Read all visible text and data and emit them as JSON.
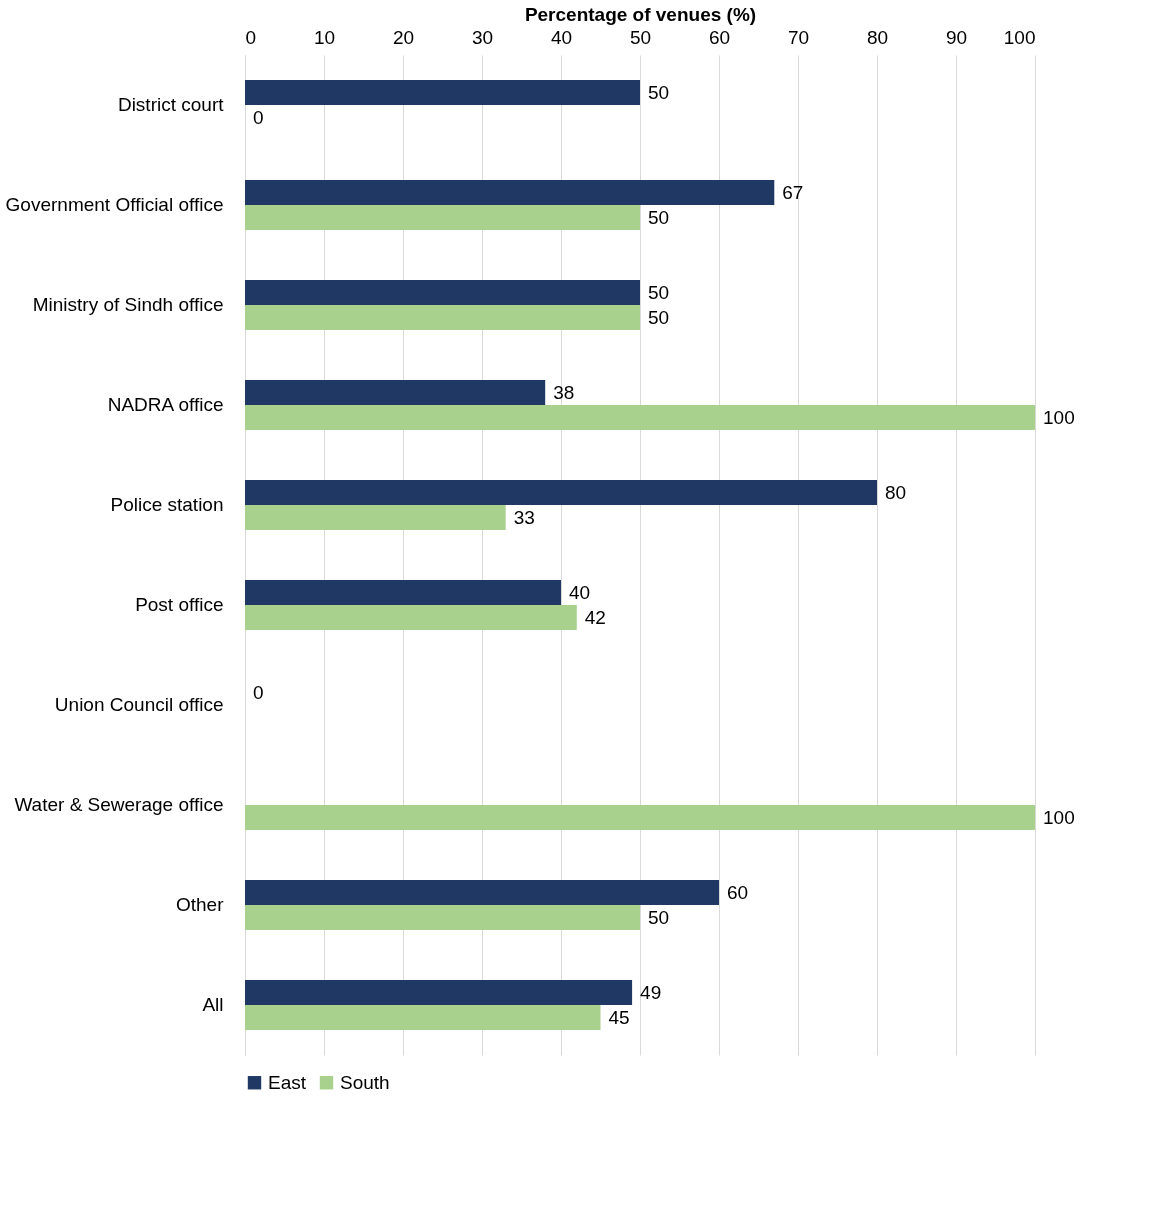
{
  "chart_data": {
    "type": "bar",
    "orientation": "horizontal",
    "xlabel": "Percentage of venues (%)",
    "categories": [
      "District court",
      "Government Official office",
      "Ministry of Sindh office",
      "NADRA office",
      "Police station",
      "Post office",
      "Union Council office",
      "Water & Sewerage office",
      "Other",
      "All"
    ],
    "series": [
      {
        "name": "East",
        "color": "#1f3864",
        "values": [
          50,
          67,
          50,
          38,
          80,
          40,
          0,
          null,
          60,
          49
        ]
      },
      {
        "name": "South",
        "color": "#a9d18e",
        "values": [
          0,
          50,
          50,
          100,
          33,
          42,
          null,
          100,
          50,
          45
        ]
      }
    ],
    "xlim": [
      0,
      100
    ],
    "xticks": [
      0,
      10,
      20,
      30,
      40,
      50,
      60,
      70,
      80,
      90,
      100
    ],
    "grid": "x",
    "legend": "bottom",
    "data_labels": true
  }
}
